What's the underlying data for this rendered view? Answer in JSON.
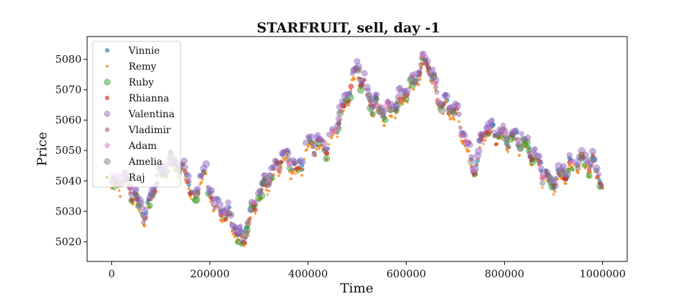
{
  "chart_data": {
    "type": "scatter",
    "title": "STARFRUIT, sell, day -1",
    "xlabel": "Time",
    "ylabel": "Price",
    "xlim": [
      -50000,
      1050000
    ],
    "ylim": [
      5013.5,
      5087.5
    ],
    "xticks": [
      0,
      200000,
      400000,
      600000,
      800000,
      1000000
    ],
    "xtick_labels": [
      "0",
      "200000",
      "400000",
      "600000",
      "800000",
      "1000000"
    ],
    "yticks": [
      5020,
      5030,
      5040,
      5050,
      5060,
      5070,
      5080
    ],
    "ytick_labels": [
      "5020",
      "5030",
      "5040",
      "5050",
      "5060",
      "5070",
      "5080"
    ],
    "grid": false,
    "legend_position": "top-left",
    "price_path": [
      {
        "x": 0,
        "y": 5038
      },
      {
        "x": 30000,
        "y": 5040
      },
      {
        "x": 50000,
        "y": 5033
      },
      {
        "x": 70000,
        "y": 5028
      },
      {
        "x": 90000,
        "y": 5040
      },
      {
        "x": 120000,
        "y": 5046
      },
      {
        "x": 150000,
        "y": 5043
      },
      {
        "x": 170000,
        "y": 5033
      },
      {
        "x": 185000,
        "y": 5044
      },
      {
        "x": 210000,
        "y": 5032
      },
      {
        "x": 240000,
        "y": 5028
      },
      {
        "x": 265000,
        "y": 5019
      },
      {
        "x": 290000,
        "y": 5032
      },
      {
        "x": 330000,
        "y": 5043
      },
      {
        "x": 350000,
        "y": 5048
      },
      {
        "x": 380000,
        "y": 5043
      },
      {
        "x": 400000,
        "y": 5052
      },
      {
        "x": 440000,
        "y": 5051
      },
      {
        "x": 470000,
        "y": 5063
      },
      {
        "x": 500000,
        "y": 5077
      },
      {
        "x": 530000,
        "y": 5065
      },
      {
        "x": 560000,
        "y": 5062
      },
      {
        "x": 590000,
        "y": 5067
      },
      {
        "x": 615000,
        "y": 5072
      },
      {
        "x": 640000,
        "y": 5080
      },
      {
        "x": 670000,
        "y": 5065
      },
      {
        "x": 700000,
        "y": 5063
      },
      {
        "x": 730000,
        "y": 5048
      },
      {
        "x": 740000,
        "y": 5043
      },
      {
        "x": 760000,
        "y": 5057
      },
      {
        "x": 800000,
        "y": 5054
      },
      {
        "x": 840000,
        "y": 5053
      },
      {
        "x": 870000,
        "y": 5045
      },
      {
        "x": 890000,
        "y": 5039
      },
      {
        "x": 920000,
        "y": 5042
      },
      {
        "x": 950000,
        "y": 5047
      },
      {
        "x": 980000,
        "y": 5045
      },
      {
        "x": 1000000,
        "y": 5039
      }
    ],
    "series": [
      {
        "name": "Vinnie",
        "color": "#1f77b4",
        "marker_size": 3,
        "alpha": 0.6,
        "offset": 0.6,
        "keep": 0.35,
        "seed": 11
      },
      {
        "name": "Remy",
        "color": "#ff7f0e",
        "marker_size": 1.8,
        "alpha": 0.75,
        "offset": -1.3,
        "keep": 0.8,
        "seed": 23
      },
      {
        "name": "Ruby",
        "color": "#2ca02c",
        "marker_size": 4.5,
        "alpha": 0.5,
        "offset": -0.7,
        "keep": 0.18,
        "seed": 37
      },
      {
        "name": "Rhianna",
        "color": "#d62728",
        "marker_size": 3,
        "alpha": 0.6,
        "offset": 0.2,
        "keep": 0.2,
        "seed": 41
      },
      {
        "name": "Valentina",
        "color": "#9467bd",
        "marker_size": 4.2,
        "alpha": 0.5,
        "offset": 1.6,
        "keep": 0.65,
        "seed": 53
      },
      {
        "name": "Vladimir",
        "color": "#8c564b",
        "marker_size": 3,
        "alpha": 0.5,
        "offset": 0.4,
        "keep": 0.2,
        "seed": 67
      },
      {
        "name": "Adam",
        "color": "#e377c2",
        "marker_size": 3.5,
        "alpha": 0.55,
        "offset": 0.8,
        "keep": 0.05,
        "seed": 79
      },
      {
        "name": "Amelia",
        "color": "#7f7f7f",
        "marker_size": 4.5,
        "alpha": 0.5,
        "offset": 0.3,
        "keep": 0.1,
        "seed": 83
      },
      {
        "name": "Raj",
        "color": "#bcbd22",
        "marker_size": 1.2,
        "alpha": 0.6,
        "offset": -0.5,
        "keep": 0.1,
        "seed": 97
      }
    ]
  }
}
